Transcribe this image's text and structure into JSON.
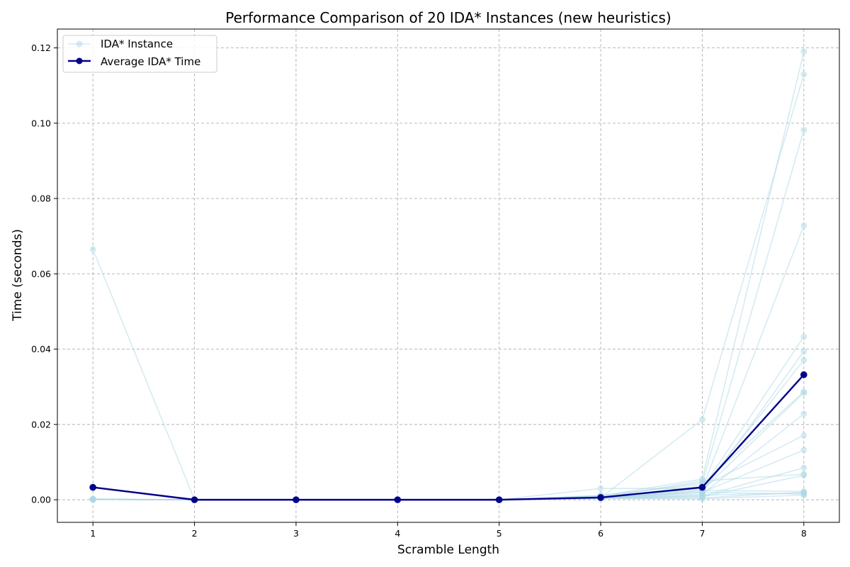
{
  "chart_data": {
    "type": "line",
    "title": "Performance Comparison of 20 IDA* Instances (new heuristics)",
    "xlabel": "Scramble Length",
    "ylabel": "Time (seconds)",
    "x": [
      1,
      2,
      3,
      4,
      5,
      6,
      7,
      8
    ],
    "xlim": [
      0.65,
      8.35
    ],
    "ylim": [
      -0.006,
      0.125
    ],
    "xticks": [
      1,
      2,
      3,
      4,
      5,
      6,
      7,
      8
    ],
    "yticks": [
      0.0,
      0.02,
      0.04,
      0.06,
      0.08,
      0.1,
      0.12
    ],
    "ytick_labels": [
      "0.00",
      "0.02",
      "0.04",
      "0.06",
      "0.08",
      "0.10",
      "0.12"
    ],
    "grid": true,
    "legend": {
      "position": "top-left",
      "entries": [
        "IDA* Instance",
        "Average IDA* Time"
      ]
    },
    "colors": {
      "instance": "#add8e6",
      "average": "#00008b"
    },
    "instances": [
      [
        0.0665,
        0.0,
        0.0,
        0.0,
        0.0,
        0.001,
        0.0055,
        0.119
      ],
      [
        0.0002,
        0.0,
        0.0,
        0.0,
        0.0,
        0.0005,
        0.0213,
        0.113
      ],
      [
        0.0001,
        0.0,
        0.0,
        0.0,
        0.0,
        0.001,
        0.0045,
        0.0982
      ],
      [
        0.0001,
        0.0,
        0.0,
        0.0,
        0.0,
        0.003,
        0.003,
        0.0728
      ],
      [
        0.0001,
        0.0,
        0.0,
        0.0,
        0.0,
        0.0005,
        0.003,
        0.0433
      ],
      [
        0.0001,
        0.0,
        0.0,
        0.0,
        0.0,
        0.0005,
        0.002,
        0.0394
      ],
      [
        0.0001,
        0.0,
        0.0,
        0.0,
        0.0,
        0.0008,
        0.003,
        0.0371
      ],
      [
        0.0001,
        0.0,
        0.0,
        0.0,
        0.0,
        0.0012,
        0.004,
        0.0287
      ],
      [
        0.0001,
        0.0,
        0.0,
        0.0,
        0.0,
        0.0004,
        0.0025,
        0.0284
      ],
      [
        0.0001,
        0.0,
        0.0,
        0.0,
        0.0,
        0.0005,
        0.0015,
        0.0228
      ],
      [
        0.0001,
        0.0,
        0.0,
        0.0,
        0.0,
        0.0006,
        0.0035,
        0.0171
      ],
      [
        0.0001,
        0.0,
        0.0,
        0.0,
        0.0,
        0.0003,
        0.002,
        0.0132
      ],
      [
        0.0001,
        0.0,
        0.0,
        0.0,
        0.0,
        0.0004,
        0.001,
        0.0085
      ],
      [
        0.0001,
        0.0,
        0.0,
        0.0,
        0.0,
        0.0005,
        0.005,
        0.0068
      ],
      [
        0.0001,
        0.0,
        0.0,
        0.0,
        0.0,
        0.0004,
        0.0008,
        0.0065
      ],
      [
        0.0001,
        0.0,
        0.0,
        0.0,
        0.0,
        0.0006,
        0.0025,
        0.0022
      ],
      [
        0.0001,
        0.0,
        0.0,
        0.0,
        0.0,
        0.0004,
        0.0005,
        0.002
      ],
      [
        0.0001,
        0.0,
        0.0,
        0.0,
        0.0,
        0.0005,
        0.0012,
        0.0018
      ],
      [
        0.0001,
        0.0,
        0.0,
        0.0,
        0.0,
        0.0006,
        0.002,
        0.0015
      ],
      [
        0.0001,
        0.0,
        0.0,
        0.0,
        0.0,
        0.0004,
        0.0003,
        0.0012
      ]
    ],
    "average": [
      0.0033,
      0.0,
      0.0,
      0.0,
      0.0,
      0.0006,
      0.0033,
      0.0332
    ]
  }
}
